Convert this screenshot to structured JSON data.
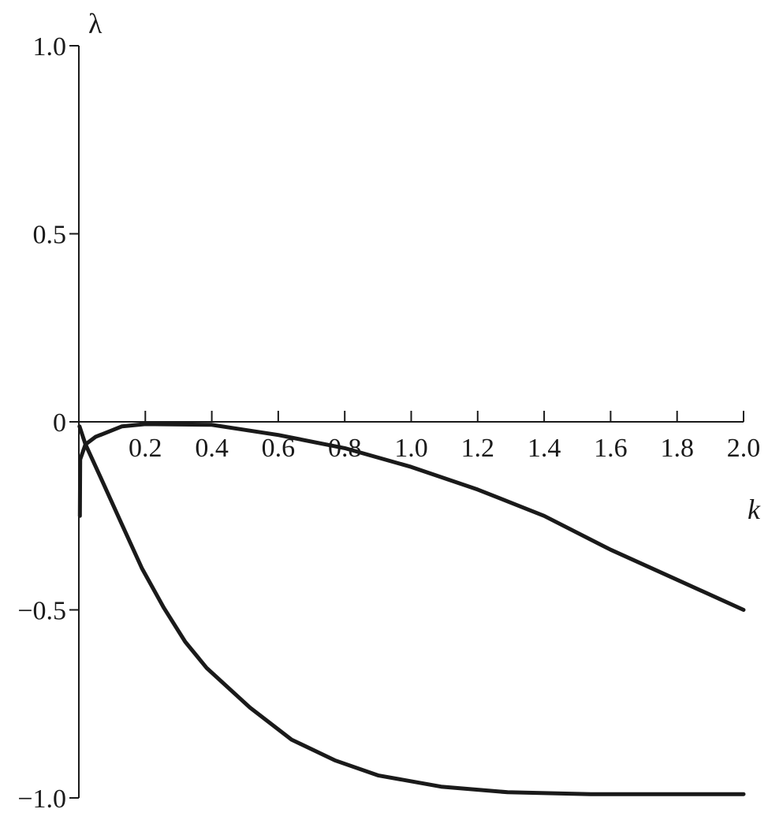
{
  "chart_data": {
    "type": "line",
    "title": "",
    "xlabel": "k",
    "ylabel": "λ",
    "xlim": [
      0,
      2.0
    ],
    "ylim": [
      -1.0,
      1.0
    ],
    "grid": false,
    "x_ticks": [
      0.2,
      0.4,
      0.6,
      0.8,
      1.0,
      1.2,
      1.4,
      1.6,
      1.8,
      2.0
    ],
    "x_tick_labels": [
      "0.2",
      "0.4",
      "0.6",
      "0.8",
      "1.0",
      "1.2",
      "1.4",
      "1.6",
      "1.8",
      "2.0"
    ],
    "y_ticks": [
      1.0,
      0.5,
      0,
      -0.5,
      -1.0
    ],
    "y_tick_labels": [
      "1.0",
      "0.5",
      "0",
      "−0.5",
      "−1.0"
    ],
    "line_color": "#1a1a1a",
    "series": [
      {
        "x": [
          0.003,
          0.004,
          0.02,
          0.05,
          0.13,
          0.2,
          0.4,
          0.6,
          0.8,
          1.0,
          1.2,
          1.4,
          1.6,
          1.8,
          2.0
        ],
        "y": [
          -0.25,
          -0.1,
          -0.06,
          -0.04,
          -0.012,
          -0.006,
          -0.008,
          -0.035,
          -0.07,
          -0.12,
          -0.18,
          -0.25,
          -0.34,
          -0.42,
          -0.5
        ]
      },
      {
        "x": [
          0.002,
          0.02,
          0.064,
          0.128,
          0.19,
          0.256,
          0.32,
          0.385,
          0.515,
          0.64,
          0.77,
          0.9,
          1.09,
          1.29,
          1.54,
          2.0
        ],
        "y": [
          -0.012,
          -0.06,
          -0.145,
          -0.27,
          -0.39,
          -0.495,
          -0.585,
          -0.655,
          -0.76,
          -0.845,
          -0.9,
          -0.94,
          -0.97,
          -0.985,
          -0.99,
          -0.99
        ]
      }
    ]
  }
}
